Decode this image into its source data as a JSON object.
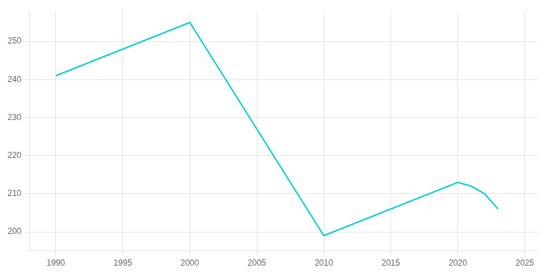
{
  "chart_data": {
    "type": "line",
    "x": [
      1990,
      2000,
      2010,
      2020,
      2021,
      2022,
      2023
    ],
    "values": [
      241,
      255,
      199,
      213,
      212,
      210,
      206
    ],
    "color": "#00CED1",
    "xlim": [
      1988,
      2026
    ],
    "ylim": [
      195,
      258
    ],
    "xticks": [
      1990,
      1995,
      2000,
      2005,
      2010,
      2015,
      2020,
      2025
    ],
    "yticks": [
      200,
      210,
      220,
      230,
      240,
      250
    ],
    "grid": true
  }
}
